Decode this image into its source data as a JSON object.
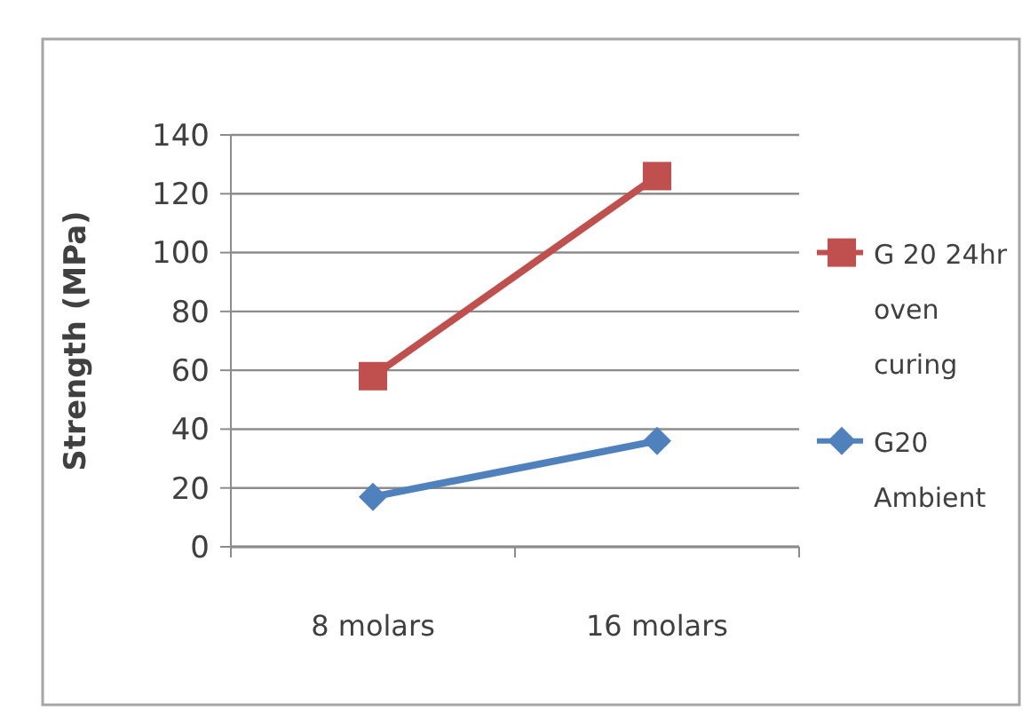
{
  "chart_data": {
    "type": "line",
    "ylabel": "Strength (MPa)",
    "categories": [
      "8 molars",
      "16 molars"
    ],
    "series": [
      {
        "name": "G 20 24hr oven curing",
        "color": "#c0504d",
        "values": [
          58,
          126
        ],
        "marker": "square"
      },
      {
        "name": "G20 Ambient",
        "color": "#4f81bd",
        "values": [
          17,
          36
        ],
        "marker": "diamond"
      }
    ],
    "ylim": [
      0,
      140
    ],
    "yticks": [
      0,
      20,
      40,
      60,
      80,
      100,
      120,
      140
    ],
    "grid": "y",
    "legend": "right",
    "line_style": "solid"
  }
}
